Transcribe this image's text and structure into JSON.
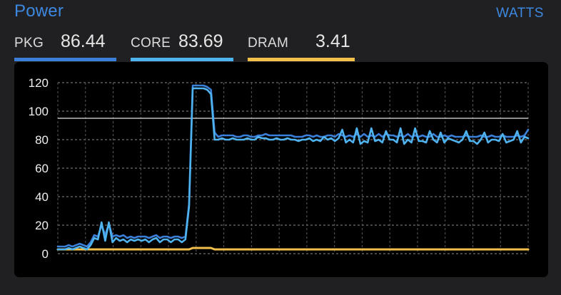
{
  "header": {
    "title": "Power",
    "units": "WATTS"
  },
  "legend": {
    "pkg": {
      "label": "PKG",
      "value": "86.44"
    },
    "core": {
      "label": "CORE",
      "value": "83.69"
    },
    "dram": {
      "label": "DRAM",
      "value": "3.41"
    }
  },
  "colors": {
    "pkg": "#3b7fd9",
    "core": "#4fb3ef",
    "dram": "#f2c04a",
    "accent": "#3d88e0"
  },
  "chart_data": {
    "type": "line",
    "ylim": [
      0,
      120
    ],
    "yticks": [
      "0",
      "20",
      "40",
      "60",
      "80",
      "100",
      "120"
    ],
    "reference_line": 95,
    "grid": true,
    "series": [
      {
        "name": "PKG",
        "color": "#3b7fd9",
        "values": [
          5,
          5,
          5,
          6,
          5,
          6,
          7,
          6,
          5,
          8,
          13,
          12,
          20,
          13,
          21,
          12,
          13,
          12,
          13,
          11,
          12,
          11,
          12,
          12,
          12,
          11,
          12,
          13,
          11,
          12,
          12,
          11,
          12,
          12,
          11,
          12,
          35,
          118,
          118,
          118,
          118,
          117,
          115,
          85,
          82,
          83,
          83,
          83,
          83,
          82,
          82,
          83,
          83,
          82,
          82,
          83,
          83,
          84,
          83,
          83,
          83,
          83,
          83,
          83,
          83,
          82,
          82,
          82,
          83,
          83,
          82,
          83,
          82,
          82,
          83,
          83,
          82,
          84,
          83,
          82,
          83,
          82,
          84,
          82,
          84,
          82,
          83,
          82,
          84,
          82,
          84,
          83,
          83,
          82,
          83,
          82,
          84,
          82,
          83,
          82,
          83,
          82,
          82,
          84,
          82,
          82,
          83,
          82,
          83,
          82,
          82,
          82,
          83,
          82,
          82,
          82,
          83,
          82,
          82,
          83,
          82,
          82,
          83,
          82,
          82,
          82,
          83,
          82,
          83,
          87
        ]
      },
      {
        "name": "CORE",
        "color": "#4fb3ef",
        "values": [
          3,
          3,
          3,
          4,
          3,
          4,
          5,
          4,
          3,
          6,
          11,
          10,
          22,
          9,
          22,
          8,
          11,
          9,
          10,
          8,
          10,
          9,
          10,
          9,
          10,
          8,
          10,
          11,
          8,
          10,
          10,
          8,
          10,
          10,
          8,
          10,
          33,
          116,
          116,
          116,
          116,
          115,
          112,
          80,
          80,
          81,
          80,
          80,
          81,
          80,
          80,
          80,
          81,
          80,
          80,
          82,
          81,
          81,
          80,
          80,
          81,
          80,
          80,
          81,
          80,
          80,
          79,
          80,
          80,
          81,
          79,
          80,
          79,
          82,
          80,
          81,
          79,
          81,
          87,
          78,
          80,
          78,
          88,
          77,
          79,
          78,
          88,
          79,
          80,
          78,
          86,
          80,
          80,
          78,
          88,
          77,
          80,
          78,
          88,
          79,
          79,
          78,
          86,
          80,
          78,
          85,
          78,
          81,
          80,
          79,
          78,
          80,
          86,
          79,
          79,
          77,
          80,
          85,
          78,
          80,
          80,
          79,
          84,
          78,
          79,
          80,
          86,
          78,
          82,
          81
        ]
      },
      {
        "name": "DRAM",
        "color": "#f2c04a",
        "values": [
          3,
          3,
          3,
          3,
          3,
          3,
          3,
          3,
          3,
          3,
          3,
          3,
          3,
          3,
          3,
          3,
          3,
          3,
          3,
          3,
          3,
          3,
          3,
          3,
          3,
          3,
          3,
          3,
          3,
          3,
          3,
          3,
          3,
          3,
          3,
          3,
          3,
          4,
          4,
          4,
          4,
          4,
          4,
          3,
          3,
          3,
          3,
          3,
          3,
          3,
          3,
          3,
          3,
          3,
          3,
          3,
          3,
          3,
          3,
          3,
          3,
          3,
          3,
          3,
          3,
          3,
          3,
          3,
          3,
          3,
          3,
          3,
          3,
          3,
          3,
          3,
          3,
          3,
          3,
          3,
          3,
          3,
          3,
          3,
          3,
          3,
          3,
          3,
          3,
          3,
          3,
          3,
          3,
          3,
          3,
          3,
          3,
          3,
          3,
          3,
          3,
          3,
          3,
          3,
          3,
          3,
          3,
          3,
          3,
          3,
          3,
          3,
          3,
          3,
          3,
          3,
          3,
          3,
          3,
          3,
          3,
          3,
          3,
          3,
          3,
          3,
          3,
          3,
          3,
          3
        ]
      }
    ]
  }
}
